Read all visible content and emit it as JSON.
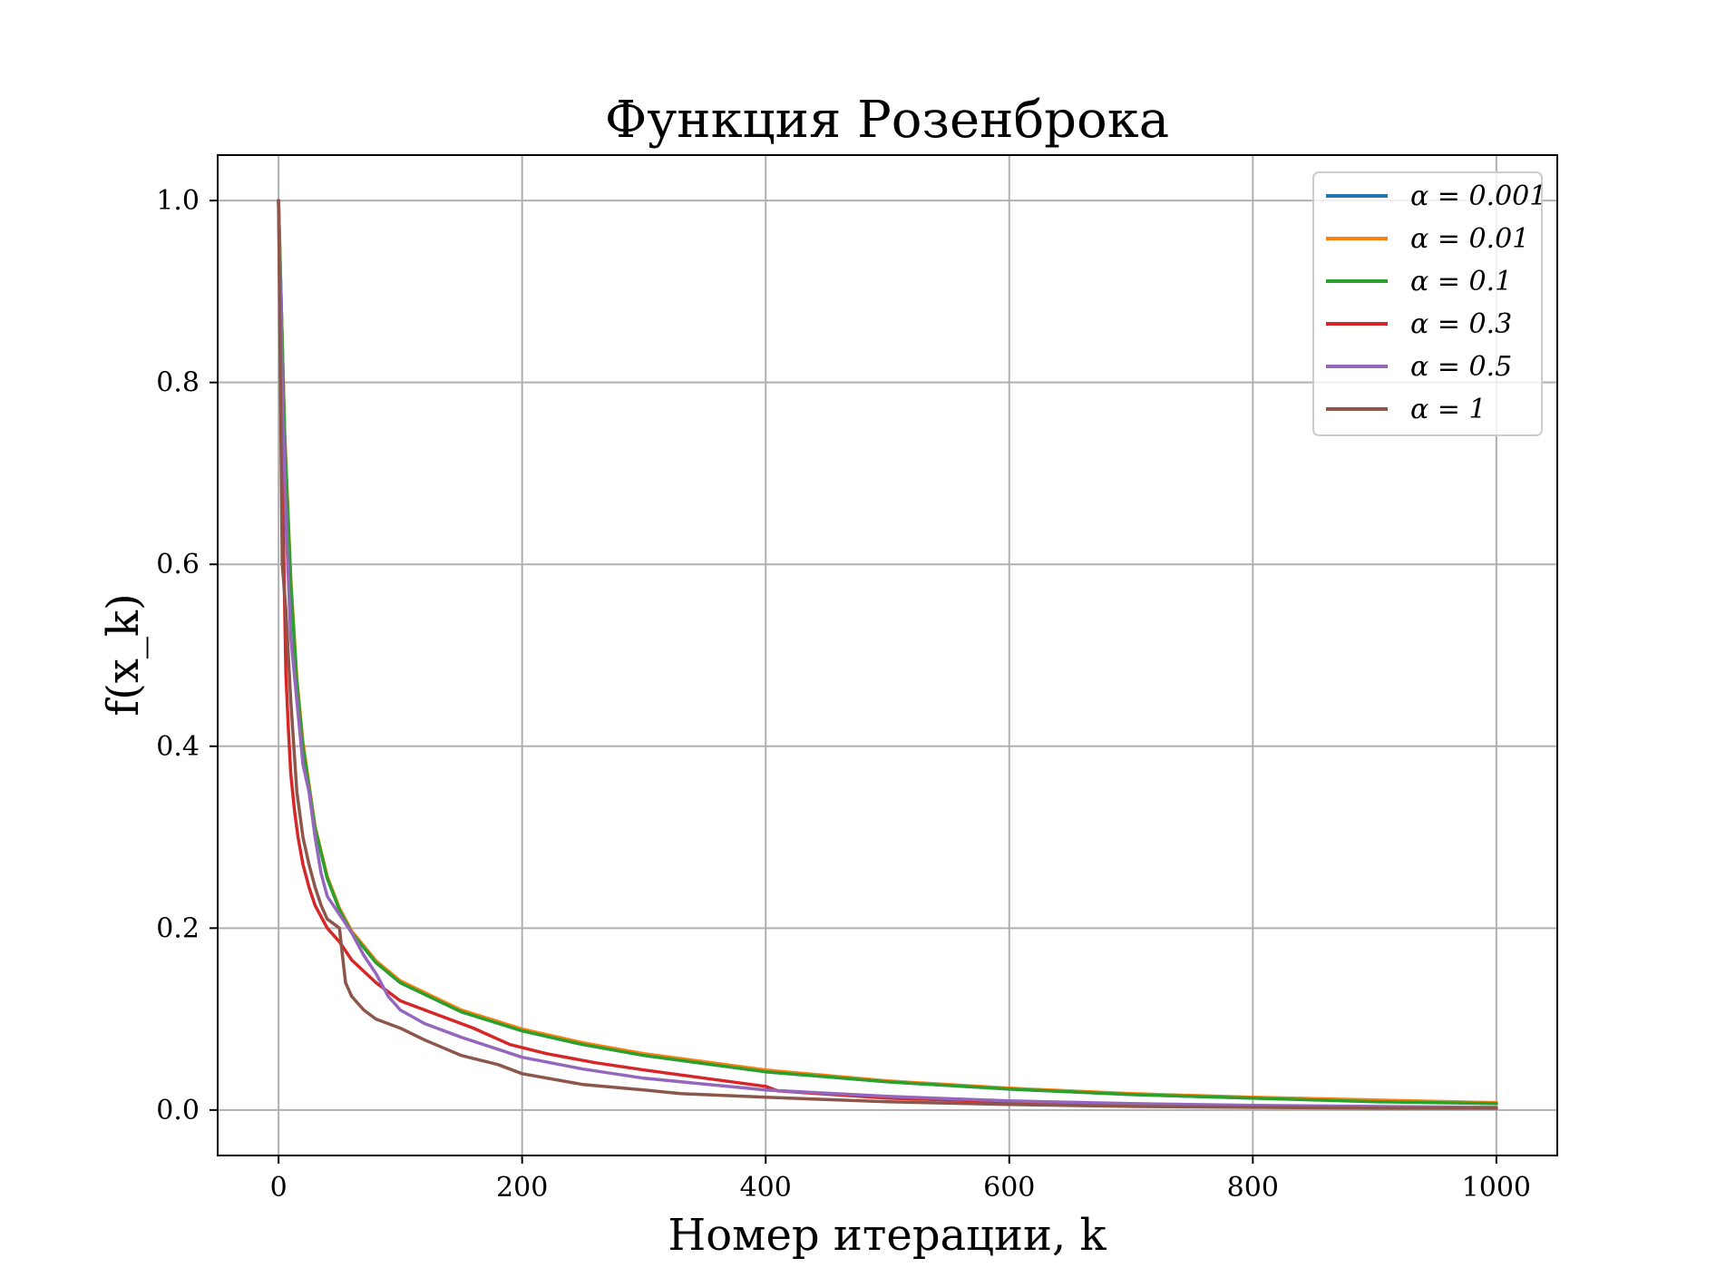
{
  "chart_data": {
    "type": "line",
    "title": "Функция Розенброка",
    "xlabel": "Номер итерации, k",
    "ylabel": "f(x_k)",
    "xlim": [
      -50,
      1050
    ],
    "ylim": [
      -0.05,
      1.05
    ],
    "xticks": [
      "0",
      "200",
      "400",
      "600",
      "800",
      "1000"
    ],
    "yticks": [
      "0.0",
      "0.2",
      "0.4",
      "0.6",
      "0.8",
      "1.0"
    ],
    "grid": true,
    "legend_position": "top-right",
    "series": [
      {
        "name": "α = 0.001",
        "color": "#1f77b4",
        "x": [
          0,
          5,
          10,
          15,
          20,
          30,
          40,
          50,
          60,
          80,
          100,
          150,
          200,
          250,
          300,
          400,
          500,
          600,
          700,
          800,
          900,
          1000
        ],
        "y": [
          1.0,
          0.74,
          0.58,
          0.47,
          0.4,
          0.31,
          0.255,
          0.22,
          0.195,
          0.162,
          0.14,
          0.108,
          0.087,
          0.072,
          0.06,
          0.042,
          0.031,
          0.023,
          0.017,
          0.013,
          0.01,
          0.007
        ]
      },
      {
        "name": "α = 0.01",
        "color": "#ff7f0e",
        "x": [
          0,
          5,
          10,
          15,
          20,
          30,
          40,
          50,
          60,
          80,
          100,
          150,
          200,
          250,
          300,
          400,
          500,
          600,
          700,
          800,
          900,
          1000
        ],
        "y": [
          1.0,
          0.745,
          0.585,
          0.475,
          0.405,
          0.312,
          0.257,
          0.222,
          0.197,
          0.164,
          0.142,
          0.11,
          0.089,
          0.074,
          0.062,
          0.044,
          0.032,
          0.024,
          0.018,
          0.014,
          0.011,
          0.008
        ]
      },
      {
        "name": "α = 0.1",
        "color": "#2ca02c",
        "x": [
          0,
          5,
          10,
          15,
          20,
          30,
          40,
          50,
          60,
          80,
          100,
          150,
          200,
          250,
          300,
          400,
          500,
          600,
          700,
          800,
          900,
          1000
        ],
        "y": [
          1.0,
          0.74,
          0.58,
          0.47,
          0.4,
          0.31,
          0.255,
          0.22,
          0.195,
          0.162,
          0.14,
          0.108,
          0.087,
          0.072,
          0.06,
          0.042,
          0.031,
          0.023,
          0.017,
          0.013,
          0.009,
          0.007
        ]
      },
      {
        "name": "α = 0.3",
        "color": "#d62728",
        "x": [
          0,
          3,
          6,
          8,
          10,
          13,
          16,
          20,
          25,
          30,
          40,
          50,
          60,
          80,
          100,
          130,
          160,
          190,
          220,
          260,
          300,
          350,
          400,
          410,
          500,
          600,
          700,
          800,
          900,
          1000
        ],
        "y": [
          1.0,
          0.7,
          0.48,
          0.42,
          0.37,
          0.33,
          0.3,
          0.27,
          0.245,
          0.225,
          0.2,
          0.185,
          0.165,
          0.14,
          0.12,
          0.105,
          0.09,
          0.072,
          0.062,
          0.052,
          0.044,
          0.035,
          0.026,
          0.021,
          0.013,
          0.009,
          0.006,
          0.004,
          0.003,
          0.002
        ]
      },
      {
        "name": "α = 0.5",
        "color": "#9467bd",
        "x": [
          0,
          3,
          6,
          10,
          15,
          20,
          25,
          30,
          35,
          40,
          50,
          60,
          70,
          80,
          90,
          100,
          120,
          150,
          200,
          250,
          300,
          400,
          500,
          600,
          700,
          800,
          900,
          1000
        ],
        "y": [
          1.0,
          0.8,
          0.65,
          0.52,
          0.45,
          0.38,
          0.35,
          0.3,
          0.26,
          0.235,
          0.215,
          0.195,
          0.17,
          0.15,
          0.125,
          0.11,
          0.095,
          0.08,
          0.058,
          0.045,
          0.035,
          0.022,
          0.015,
          0.01,
          0.007,
          0.005,
          0.004,
          0.003
        ]
      },
      {
        "name": "α = 1",
        "color": "#8c564b",
        "x": [
          0,
          3,
          6,
          10,
          15,
          20,
          25,
          30,
          35,
          40,
          50,
          52,
          55,
          60,
          70,
          80,
          100,
          120,
          150,
          180,
          200,
          250,
          300,
          330,
          400,
          500,
          600,
          700,
          800,
          900,
          1000
        ],
        "y": [
          1.0,
          0.6,
          0.55,
          0.45,
          0.35,
          0.3,
          0.27,
          0.245,
          0.225,
          0.21,
          0.2,
          0.175,
          0.14,
          0.125,
          0.11,
          0.1,
          0.09,
          0.077,
          0.06,
          0.05,
          0.04,
          0.028,
          0.022,
          0.018,
          0.014,
          0.009,
          0.006,
          0.004,
          0.003,
          0.002,
          0.002
        ]
      }
    ]
  }
}
